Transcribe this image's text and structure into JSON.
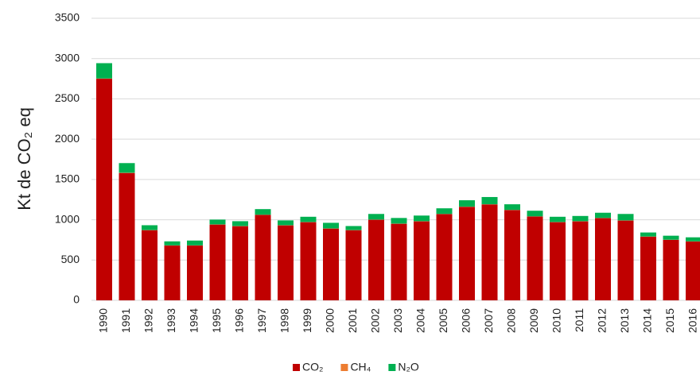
{
  "chart_data": {
    "type": "stacked_bar",
    "ylabel": "Kt de CO₂ eq",
    "categories": [
      "1990",
      "1991",
      "1992",
      "1993",
      "1994",
      "1995",
      "1996",
      "1997",
      "1998",
      "1999",
      "2000",
      "2001",
      "2002",
      "2003",
      "2004",
      "2005",
      "2006",
      "2007",
      "2008",
      "2009",
      "2010",
      "2011",
      "2012",
      "2013",
      "2014",
      "2015",
      "2016"
    ],
    "series": [
      {
        "name": "CO₂",
        "color": "#c00000",
        "values": [
          2750,
          1580,
          870,
          680,
          680,
          940,
          920,
          1060,
          930,
          970,
          890,
          870,
          1000,
          950,
          980,
          1070,
          1160,
          1190,
          1120,
          1040,
          970,
          980,
          1020,
          990,
          790,
          750,
          730
        ]
      },
      {
        "name": "CH₄",
        "color": "#ed7d31",
        "values": [
          3,
          3,
          2,
          2,
          2,
          2,
          2,
          2,
          2,
          2,
          2,
          2,
          2,
          2,
          2,
          2,
          2,
          2,
          2,
          2,
          2,
          2,
          2,
          2,
          2,
          2,
          2
        ]
      },
      {
        "name": "N₂O",
        "color": "#00b050",
        "values": [
          190,
          120,
          60,
          50,
          60,
          60,
          60,
          70,
          60,
          65,
          70,
          50,
          70,
          70,
          70,
          70,
          80,
          90,
          70,
          70,
          65,
          65,
          65,
          80,
          50,
          50,
          50
        ]
      }
    ],
    "ylim": [
      0,
      3500
    ],
    "yticks": [
      0,
      500,
      1000,
      1500,
      2000,
      2500,
      3000,
      3500
    ],
    "grid": true,
    "legend": "bottom"
  }
}
